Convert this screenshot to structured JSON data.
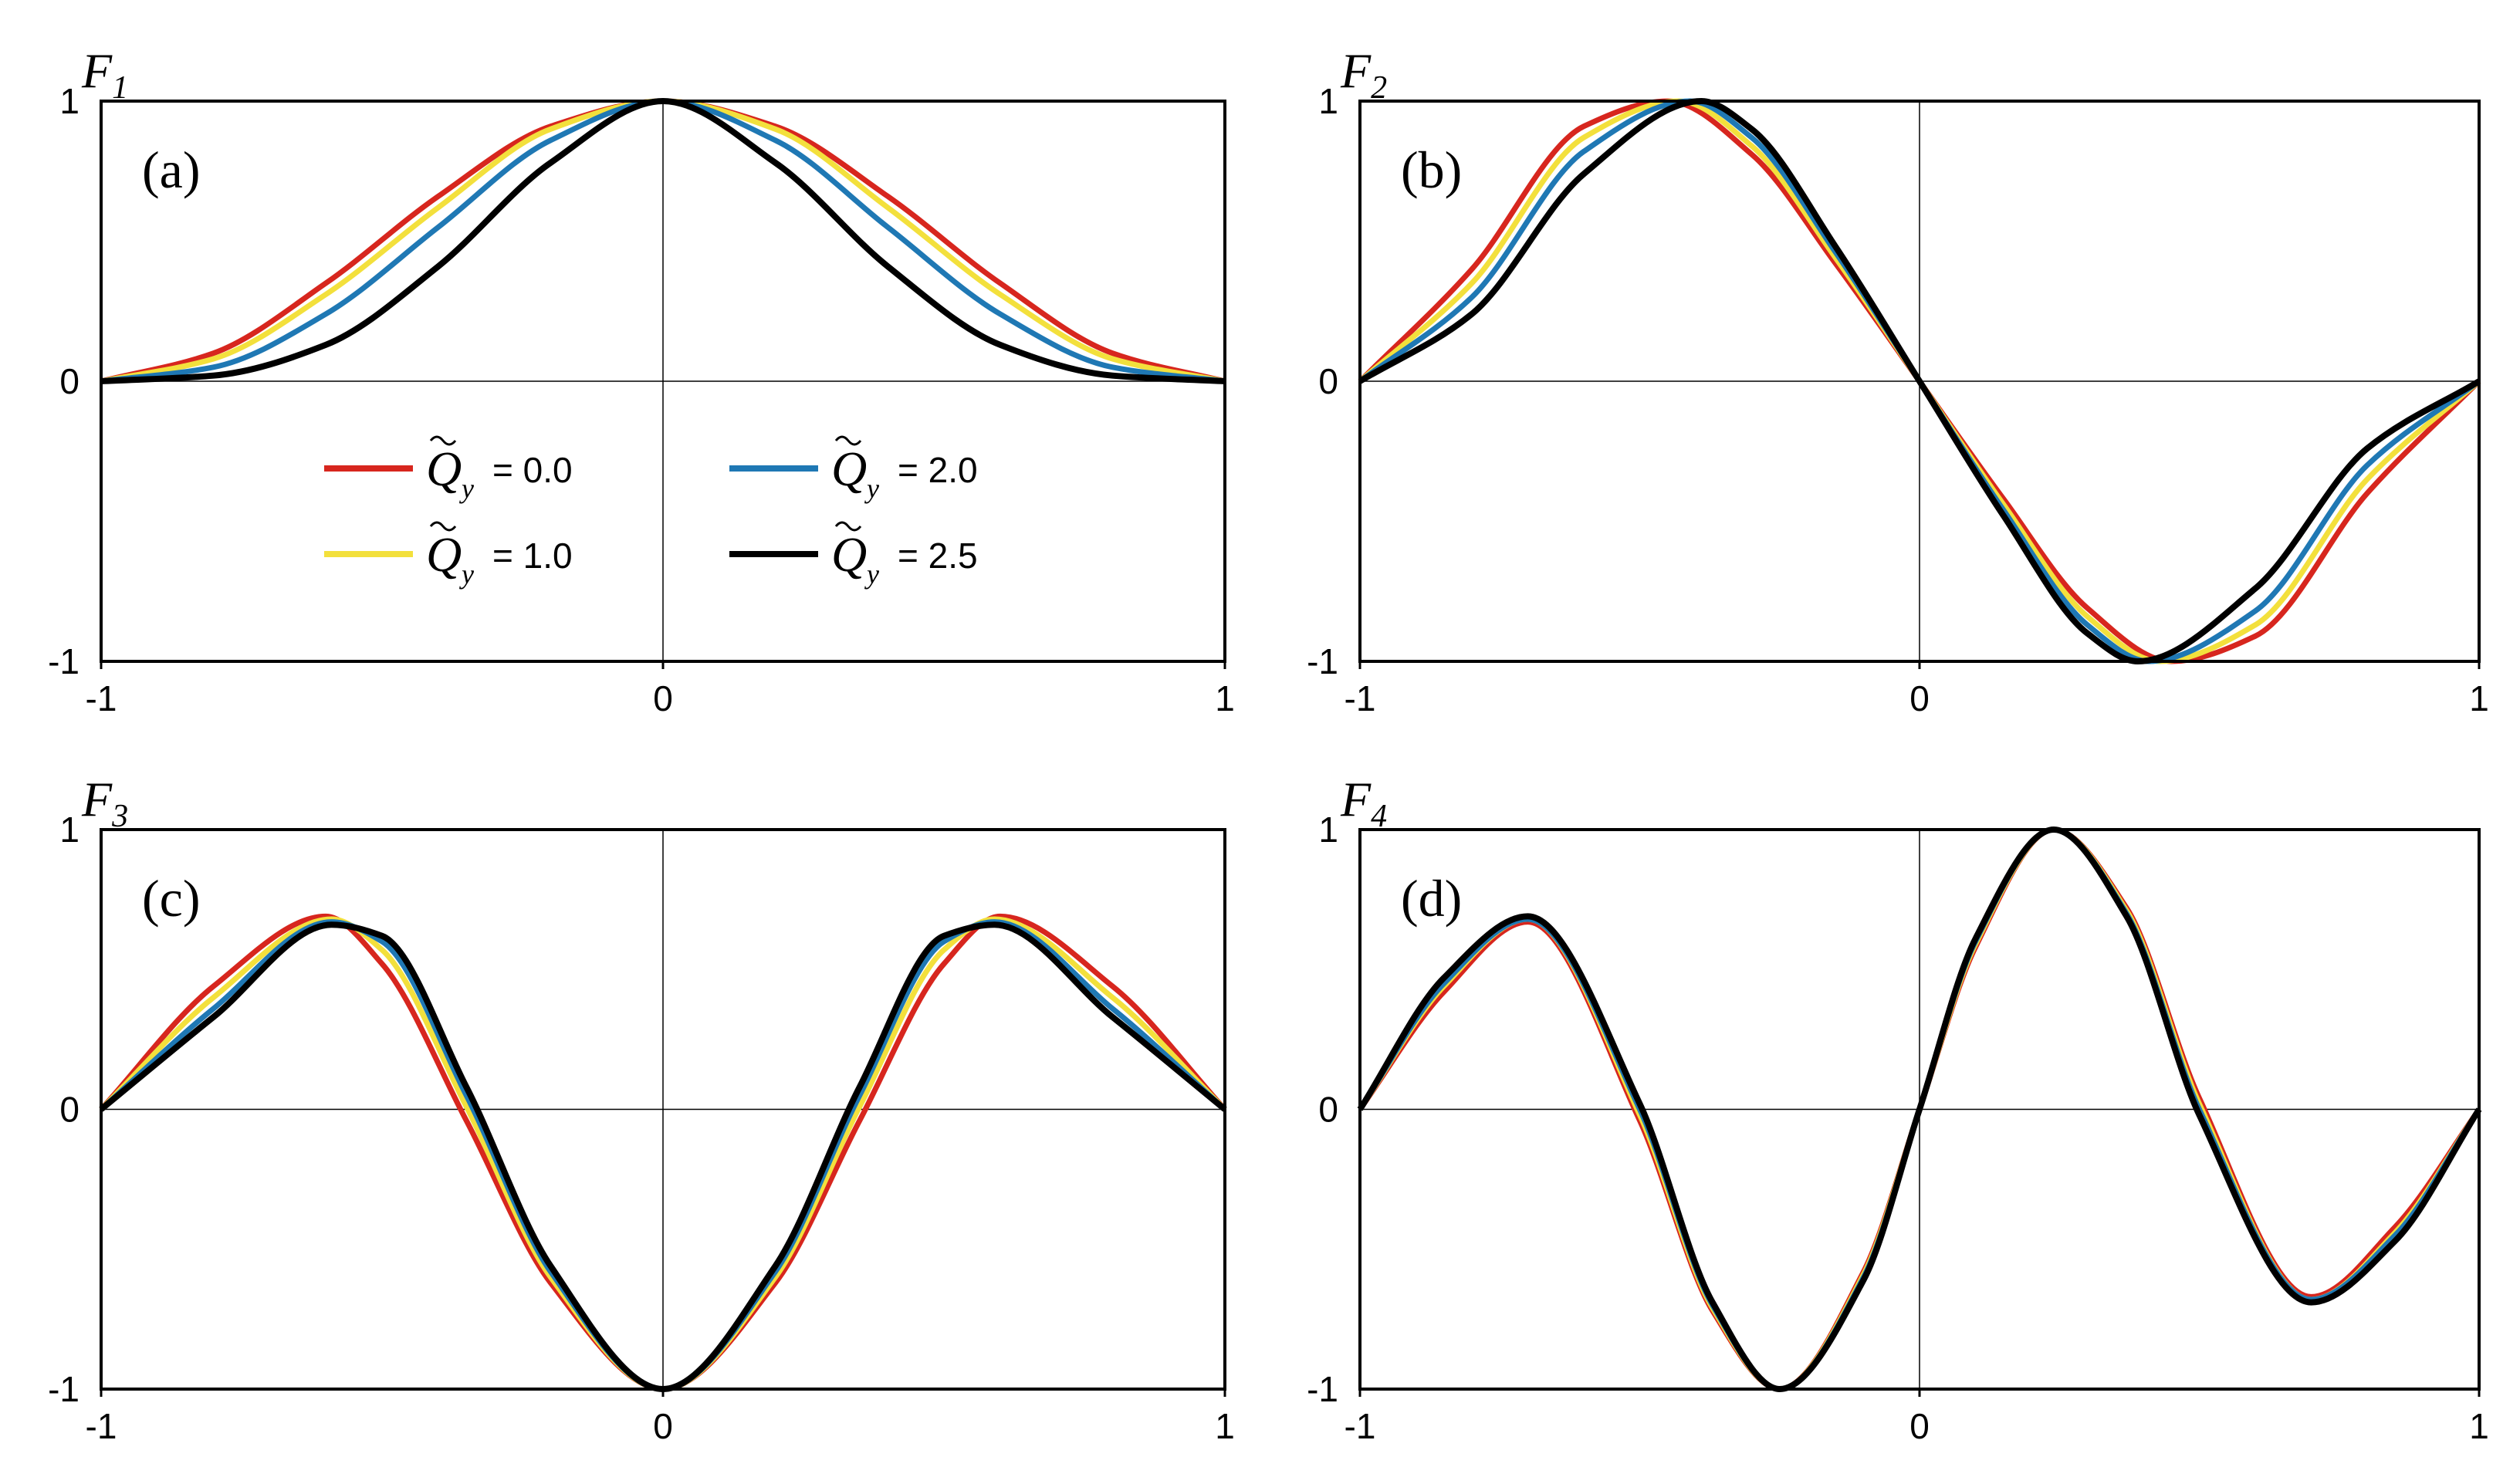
{
  "legend": {
    "entries": [
      {
        "symbol": "Q",
        "subscript": "y",
        "value_text": "= 0.0",
        "color": "#d7261e"
      },
      {
        "symbol": "Q",
        "subscript": "y",
        "value_text": "= 1.0",
        "color": "#f3e03c"
      },
      {
        "symbol": "Q",
        "subscript": "y",
        "value_text": "= 2.0",
        "color": "#1f78b4"
      },
      {
        "symbol": "Q",
        "subscript": "y",
        "value_text": "= 2.5",
        "color": "#000000"
      }
    ]
  },
  "chart_data": [
    {
      "type": "line",
      "panel_label": "(a)",
      "ylabel_main": "F",
      "ylabel_sub": "1",
      "xlim": [
        -1,
        1
      ],
      "ylim": [
        -1,
        1
      ],
      "xticks": [
        "-1",
        "0",
        "1"
      ],
      "yticks": [
        "1",
        "0",
        "-1"
      ],
      "series": [
        {
          "color": "#d7261e",
          "x": [
            -1,
            -0.8,
            -0.6,
            -0.4,
            -0.2,
            0,
            0.2,
            0.4,
            0.6,
            0.8,
            1
          ],
          "y": [
            0,
            0.1,
            0.35,
            0.66,
            0.91,
            1,
            0.91,
            0.66,
            0.35,
            0.1,
            0
          ]
        },
        {
          "color": "#f3e03c",
          "x": [
            -1,
            -0.8,
            -0.6,
            -0.4,
            -0.2,
            0,
            0.2,
            0.4,
            0.6,
            0.8,
            1
          ],
          "y": [
            0,
            0.08,
            0.31,
            0.62,
            0.9,
            1,
            0.9,
            0.62,
            0.31,
            0.08,
            0
          ]
        },
        {
          "color": "#1f78b4",
          "x": [
            -1,
            -0.8,
            -0.6,
            -0.4,
            -0.2,
            0,
            0.2,
            0.4,
            0.6,
            0.8,
            1
          ],
          "y": [
            0,
            0.05,
            0.24,
            0.55,
            0.86,
            1,
            0.86,
            0.55,
            0.24,
            0.05,
            0
          ]
        },
        {
          "color": "#000000",
          "x": [
            -1,
            -0.8,
            -0.6,
            -0.4,
            -0.2,
            0,
            0.2,
            0.4,
            0.6,
            0.8,
            1
          ],
          "y": [
            0,
            0.02,
            0.13,
            0.41,
            0.78,
            1,
            0.78,
            0.41,
            0.13,
            0.02,
            0
          ]
        }
      ]
    },
    {
      "type": "line",
      "panel_label": "(b)",
      "ylabel_main": "F",
      "ylabel_sub": "2",
      "xlim": [
        -1,
        1
      ],
      "ylim": [
        -1,
        1
      ],
      "xticks": [
        "-1",
        "0",
        "1"
      ],
      "yticks": [
        "1",
        "0",
        "-1"
      ],
      "series": [
        {
          "color": "#d7261e",
          "x": [
            -1,
            -0.8,
            -0.6,
            -0.45,
            -0.3,
            -0.15,
            0,
            0.15,
            0.3,
            0.45,
            0.6,
            0.8,
            1
          ],
          "y": [
            0,
            0.4,
            0.91,
            1,
            0.81,
            0.42,
            0,
            -0.42,
            -0.81,
            -1,
            -0.91,
            -0.4,
            0
          ]
        },
        {
          "color": "#f3e03c",
          "x": [
            -1,
            -0.8,
            -0.6,
            -0.43,
            -0.3,
            -0.15,
            0,
            0.15,
            0.3,
            0.43,
            0.6,
            0.8,
            1
          ],
          "y": [
            0,
            0.35,
            0.87,
            1,
            0.84,
            0.44,
            0,
            -0.44,
            -0.84,
            -1,
            -0.87,
            -0.35,
            0
          ]
        },
        {
          "color": "#1f78b4",
          "x": [
            -1,
            -0.8,
            -0.6,
            -0.41,
            -0.3,
            -0.15,
            0,
            0.15,
            0.3,
            0.41,
            0.6,
            0.8,
            1
          ],
          "y": [
            0,
            0.3,
            0.82,
            1,
            0.87,
            0.46,
            0,
            -0.46,
            -0.87,
            -1,
            -0.82,
            -0.3,
            0
          ]
        },
        {
          "color": "#000000",
          "x": [
            -1,
            -0.8,
            -0.6,
            -0.39,
            -0.3,
            -0.15,
            0,
            0.15,
            0.3,
            0.39,
            0.6,
            0.8,
            1
          ],
          "y": [
            0,
            0.24,
            0.74,
            1,
            0.9,
            0.48,
            0,
            -0.48,
            -0.9,
            -1,
            -0.74,
            -0.24,
            0
          ]
        }
      ]
    },
    {
      "type": "line",
      "panel_label": "(c)",
      "ylabel_main": "F",
      "ylabel_sub": "3",
      "xlim": [
        -1,
        1
      ],
      "ylim": [
        -1,
        1
      ],
      "xticks": [
        "-1",
        "0",
        "1"
      ],
      "yticks": [
        "1",
        "0",
        "-1"
      ],
      "series": [
        {
          "color": "#d7261e",
          "x": [
            -1,
            -0.8,
            -0.6,
            -0.5,
            -0.35,
            -0.2,
            0,
            0.2,
            0.35,
            0.5,
            0.6,
            0.8,
            1
          ],
          "y": [
            0,
            0.44,
            0.69,
            0.52,
            -0.04,
            -0.62,
            -1,
            -0.62,
            -0.04,
            0.52,
            0.69,
            0.44,
            0
          ]
        },
        {
          "color": "#f3e03c",
          "x": [
            -1,
            -0.8,
            -0.59,
            -0.5,
            -0.35,
            -0.2,
            0,
            0.2,
            0.35,
            0.5,
            0.59,
            0.8,
            1
          ],
          "y": [
            0,
            0.4,
            0.68,
            0.57,
            0.01,
            -0.6,
            -1,
            -0.6,
            0.01,
            0.57,
            0.68,
            0.4,
            0
          ]
        },
        {
          "color": "#1f78b4",
          "x": [
            -1,
            -0.8,
            -0.59,
            -0.5,
            -0.35,
            -0.2,
            0,
            0.2,
            0.35,
            0.5,
            0.59,
            0.8,
            1
          ],
          "y": [
            0,
            0.36,
            0.67,
            0.6,
            0.05,
            -0.58,
            -1,
            -0.58,
            0.05,
            0.6,
            0.67,
            0.36,
            0
          ]
        },
        {
          "color": "#000000",
          "x": [
            -1,
            -0.8,
            -0.59,
            -0.5,
            -0.35,
            -0.2,
            0,
            0.2,
            0.35,
            0.5,
            0.59,
            0.8,
            1
          ],
          "y": [
            0,
            0.33,
            0.66,
            0.62,
            0.08,
            -0.56,
            -1,
            -0.56,
            0.08,
            0.62,
            0.66,
            0.33,
            0
          ]
        }
      ]
    },
    {
      "type": "line",
      "panel_label": "(d)",
      "ylabel_main": "F",
      "ylabel_sub": "4",
      "xlim": [
        -1,
        1
      ],
      "ylim": [
        -1,
        1
      ],
      "xticks": [
        "-1",
        "0",
        "1"
      ],
      "yticks": [
        "1",
        "0",
        "-1"
      ],
      "series": [
        {
          "color": "#d7261e",
          "x": [
            -1,
            -0.85,
            -0.7,
            -0.5,
            -0.37,
            -0.25,
            -0.1,
            0,
            0.1,
            0.24,
            0.37,
            0.5,
            0.7,
            0.85,
            1
          ],
          "y": [
            0,
            0.42,
            0.67,
            -0.04,
            -0.72,
            -1,
            -0.58,
            0,
            0.58,
            1,
            0.72,
            0.04,
            -0.67,
            -0.42,
            0
          ]
        },
        {
          "color": "#f3e03c",
          "x": [
            -1,
            -0.85,
            -0.7,
            -0.5,
            -0.37,
            -0.25,
            -0.1,
            0,
            0.1,
            0.24,
            0.37,
            0.5,
            0.7,
            0.85,
            1
          ],
          "y": [
            0,
            0.44,
            0.68,
            -0.02,
            -0.71,
            -1,
            -0.59,
            0,
            0.59,
            1,
            0.71,
            0.02,
            -0.68,
            -0.44,
            0
          ]
        },
        {
          "color": "#1f78b4",
          "x": [
            -1,
            -0.85,
            -0.7,
            -0.5,
            -0.37,
            -0.25,
            -0.1,
            0,
            0.1,
            0.24,
            0.37,
            0.5,
            0.7,
            0.85,
            1
          ],
          "y": [
            0,
            0.45,
            0.68,
            0,
            -0.7,
            -1,
            -0.6,
            0,
            0.6,
            1,
            0.7,
            0,
            -0.68,
            -0.45,
            0
          ]
        },
        {
          "color": "#000000",
          "x": [
            -1,
            -0.85,
            -0.7,
            -0.5,
            -0.37,
            -0.25,
            -0.1,
            0,
            0.1,
            0.24,
            0.37,
            0.5,
            0.7,
            0.85,
            1
          ],
          "y": [
            0,
            0.47,
            0.69,
            0.02,
            -0.69,
            -1,
            -0.61,
            0,
            0.61,
            1,
            0.69,
            -0.02,
            -0.69,
            -0.47,
            0
          ]
        }
      ]
    }
  ]
}
